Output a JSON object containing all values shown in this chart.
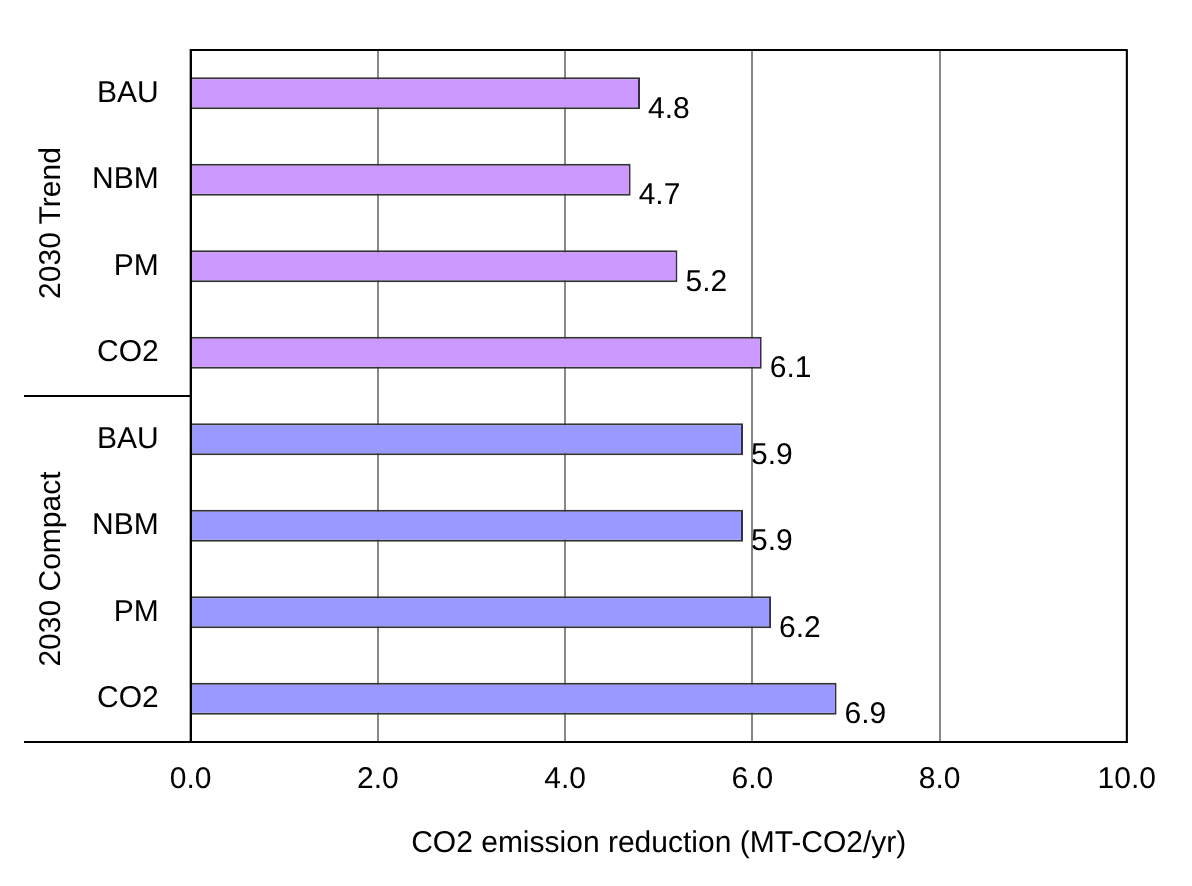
{
  "chart_data": {
    "type": "bar",
    "orientation": "horizontal",
    "xlabel": "CO2 emission reduction (MT-CO2/yr)",
    "categories": [
      "BAU",
      "NBM",
      "PM",
      "CO2",
      "BAU",
      "NBM",
      "PM",
      "CO2"
    ],
    "values": [
      4.8,
      4.7,
      5.2,
      6.1,
      5.9,
      5.9,
      6.2,
      6.9
    ],
    "colors": [
      "#cc99ff",
      "#cc99ff",
      "#cc99ff",
      "#cc99ff",
      "#9999ff",
      "#9999ff",
      "#9999ff",
      "#9999ff"
    ],
    "annotations": [
      "2030 Trend",
      "2030 Compact"
    ],
    "xlim": [
      0,
      10
    ],
    "xticks": [
      {
        "value": 0,
        "label": "0.0"
      },
      {
        "value": 2,
        "label": "2.0"
      },
      {
        "value": 4,
        "label": "4.0"
      },
      {
        "value": 6,
        "label": "6.0"
      },
      {
        "value": 8,
        "label": "8.0"
      },
      {
        "value": 10,
        "label": "10.0"
      }
    ],
    "grid": "x",
    "data_labels": true,
    "legend": false
  }
}
